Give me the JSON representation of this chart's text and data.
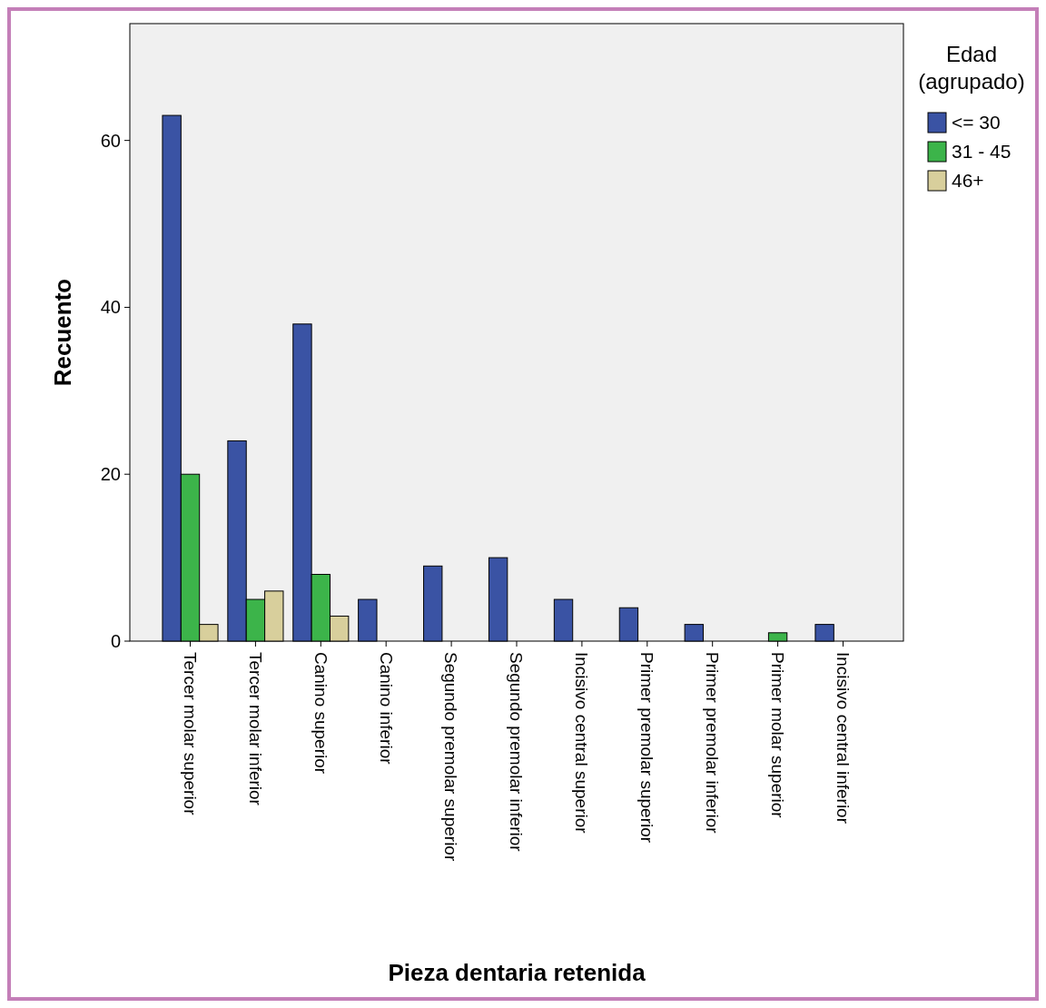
{
  "chart_data": {
    "type": "bar",
    "xlabel": "Pieza dentaria retenida",
    "ylabel": "Recuento",
    "legend_title": "Edad (agrupado)",
    "legend": "top right",
    "categories": [
      "Tercer molar superior",
      "Tercer molar inferior",
      "Canino superior",
      "Canino inferior",
      "Segundo premolar superior",
      "Segundo premolar inferior",
      "Incisivo central superior",
      "Primer premolar superior",
      "Primer premolar inferior",
      "Primer molar superior",
      "Incisivo central inferior"
    ],
    "series": [
      {
        "name": "<= 30",
        "color": "#3a53a4",
        "values": [
          63,
          24,
          38,
          5,
          9,
          10,
          5,
          4,
          2,
          null,
          2
        ]
      },
      {
        "name": "31 - 45",
        "color": "#3cb44a",
        "values": [
          20,
          5,
          8,
          null,
          null,
          null,
          null,
          null,
          null,
          1,
          null
        ]
      },
      {
        "name": "46+",
        "color": "#d8cf9c",
        "values": [
          2,
          6,
          3,
          null,
          null,
          null,
          null,
          null,
          null,
          null,
          null
        ]
      }
    ],
    "ylim": [
      0,
      74
    ],
    "yticks": [
      0,
      20,
      40,
      60
    ],
    "grid": false
  }
}
